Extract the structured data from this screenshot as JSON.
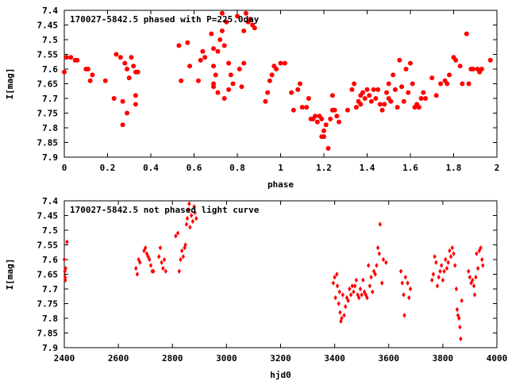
{
  "chart_data": [
    {
      "type": "scatter",
      "title": "170027-5842.5 phased with P=225.0day",
      "xlabel": "phase",
      "ylabel": "I[mag]",
      "xlim": [
        0,
        2
      ],
      "ylim": [
        7.9,
        7.4
      ],
      "y_inverted": true,
      "xticks": [
        0,
        0.2,
        0.4,
        0.6,
        0.8,
        1,
        1.2,
        1.4,
        1.6,
        1.8,
        2
      ],
      "yticks": [
        7.4,
        7.45,
        7.5,
        7.55,
        7.6,
        7.65,
        7.7,
        7.75,
        7.8,
        7.85,
        7.9
      ],
      "grid": false,
      "marker_color": "#ff0000",
      "marker": "filled-circle",
      "points": [
        [
          0.0,
          7.61
        ],
        [
          0.01,
          7.56
        ],
        [
          0.03,
          7.56
        ],
        [
          0.05,
          7.57
        ],
        [
          0.06,
          7.57
        ],
        [
          0.1,
          7.6
        ],
        [
          0.11,
          7.6
        ],
        [
          0.12,
          7.64
        ],
        [
          0.13,
          7.62
        ],
        [
          0.19,
          7.64
        ],
        [
          0.23,
          7.7
        ],
        [
          0.24,
          7.55
        ],
        [
          0.26,
          7.56
        ],
        [
          0.27,
          7.71
        ],
        [
          0.27,
          7.79
        ],
        [
          0.28,
          7.58
        ],
        [
          0.29,
          7.6
        ],
        [
          0.29,
          7.75
        ],
        [
          0.3,
          7.63
        ],
        [
          0.31,
          7.56
        ],
        [
          0.32,
          7.59
        ],
        [
          0.33,
          7.61
        ],
        [
          0.34,
          7.61
        ],
        [
          0.33,
          7.69
        ],
        [
          0.33,
          7.72
        ],
        [
          0.53,
          7.52
        ],
        [
          0.54,
          7.64
        ],
        [
          0.57,
          7.51
        ],
        [
          0.58,
          7.59
        ],
        [
          0.62,
          7.64
        ],
        [
          0.63,
          7.57
        ],
        [
          0.64,
          7.54
        ],
        [
          0.65,
          7.56
        ],
        [
          0.68,
          7.48
        ],
        [
          0.69,
          7.53
        ],
        [
          0.69,
          7.59
        ],
        [
          0.69,
          7.65
        ],
        [
          0.69,
          7.66
        ],
        [
          0.7,
          7.62
        ],
        [
          0.71,
          7.68
        ],
        [
          0.71,
          7.54
        ],
        [
          0.72,
          7.5
        ],
        [
          0.73,
          7.47
        ],
        [
          0.73,
          7.41
        ],
        [
          0.74,
          7.7
        ],
        [
          0.74,
          7.52
        ],
        [
          0.75,
          7.44
        ],
        [
          0.76,
          7.58
        ],
        [
          0.76,
          7.67
        ],
        [
          0.77,
          7.62
        ],
        [
          0.78,
          7.65
        ],
        [
          0.8,
          7.42
        ],
        [
          0.81,
          7.6
        ],
        [
          0.82,
          7.66
        ],
        [
          0.83,
          7.58
        ],
        [
          0.83,
          7.47
        ],
        [
          0.84,
          7.41
        ],
        [
          0.85,
          7.44
        ],
        [
          0.86,
          7.43
        ],
        [
          0.87,
          7.45
        ],
        [
          0.88,
          7.46
        ],
        [
          0.93,
          7.71
        ],
        [
          0.94,
          7.68
        ],
        [
          0.95,
          7.64
        ],
        [
          0.96,
          7.62
        ],
        [
          0.97,
          7.59
        ],
        [
          0.98,
          7.6
        ],
        [
          1.0,
          7.58
        ],
        [
          1.02,
          7.58
        ],
        [
          1.05,
          7.68
        ],
        [
          1.06,
          7.74
        ],
        [
          1.08,
          7.67
        ],
        [
          1.09,
          7.65
        ],
        [
          1.1,
          7.73
        ],
        [
          1.12,
          7.73
        ],
        [
          1.13,
          7.7
        ],
        [
          1.14,
          7.77
        ],
        [
          1.15,
          7.77
        ],
        [
          1.16,
          7.76
        ],
        [
          1.17,
          7.78
        ],
        [
          1.18,
          7.76
        ],
        [
          1.19,
          7.77
        ],
        [
          1.19,
          7.83
        ],
        [
          1.2,
          7.81
        ],
        [
          1.2,
          7.83
        ],
        [
          1.21,
          7.79
        ],
        [
          1.22,
          7.87
        ],
        [
          1.23,
          7.77
        ],
        [
          1.24,
          7.69
        ],
        [
          1.24,
          7.74
        ],
        [
          1.25,
          7.74
        ],
        [
          1.26,
          7.76
        ],
        [
          1.27,
          7.78
        ],
        [
          1.31,
          7.74
        ],
        [
          1.33,
          7.67
        ],
        [
          1.34,
          7.65
        ],
        [
          1.35,
          7.73
        ],
        [
          1.36,
          7.71
        ],
        [
          1.37,
          7.69
        ],
        [
          1.37,
          7.72
        ],
        [
          1.38,
          7.68
        ],
        [
          1.39,
          7.7
        ],
        [
          1.4,
          7.67
        ],
        [
          1.41,
          7.69
        ],
        [
          1.42,
          7.71
        ],
        [
          1.43,
          7.67
        ],
        [
          1.44,
          7.7
        ],
        [
          1.45,
          7.67
        ],
        [
          1.46,
          7.72
        ],
        [
          1.47,
          7.74
        ],
        [
          1.48,
          7.72
        ],
        [
          1.49,
          7.68
        ],
        [
          1.5,
          7.7
        ],
        [
          1.5,
          7.65
        ],
        [
          1.51,
          7.71
        ],
        [
          1.52,
          7.62
        ],
        [
          1.53,
          7.67
        ],
        [
          1.54,
          7.73
        ],
        [
          1.55,
          7.57
        ],
        [
          1.56,
          7.66
        ],
        [
          1.57,
          7.71
        ],
        [
          1.58,
          7.6
        ],
        [
          1.59,
          7.68
        ],
        [
          1.6,
          7.58
        ],
        [
          1.61,
          7.65
        ],
        [
          1.62,
          7.73
        ],
        [
          1.63,
          7.72
        ],
        [
          1.64,
          7.73
        ],
        [
          1.65,
          7.7
        ],
        [
          1.66,
          7.68
        ],
        [
          1.67,
          7.7
        ],
        [
          1.7,
          7.63
        ],
        [
          1.72,
          7.69
        ],
        [
          1.74,
          7.65
        ],
        [
          1.76,
          7.64
        ],
        [
          1.77,
          7.65
        ],
        [
          1.78,
          7.62
        ],
        [
          1.8,
          7.56
        ],
        [
          1.81,
          7.57
        ],
        [
          1.83,
          7.59
        ],
        [
          1.84,
          7.65
        ],
        [
          1.86,
          7.48
        ],
        [
          1.87,
          7.65
        ],
        [
          1.88,
          7.6
        ],
        [
          1.89,
          7.6
        ],
        [
          1.91,
          7.6
        ],
        [
          1.92,
          7.61
        ],
        [
          1.93,
          7.6
        ],
        [
          1.97,
          7.57
        ]
      ]
    },
    {
      "type": "scatter",
      "title": "170027-5842.5 not phased light curve",
      "xlabel": "hjd0",
      "ylabel": "I[mag]",
      "xlim": [
        2400,
        4000
      ],
      "ylim": [
        7.9,
        7.4
      ],
      "y_inverted": true,
      "xticks": [
        2400,
        2600,
        2800,
        3000,
        3200,
        3400,
        3600,
        3800,
        4000
      ],
      "yticks": [
        7.4,
        7.45,
        7.5,
        7.55,
        7.6,
        7.65,
        7.7,
        7.75,
        7.8,
        7.85,
        7.9
      ],
      "grid": false,
      "marker_color": "#ff0000",
      "marker": "diamond",
      "points": [
        [
          2400,
          7.6
        ],
        [
          2402,
          7.64
        ],
        [
          2403,
          7.66
        ],
        [
          2404,
          7.67
        ],
        [
          2405,
          7.63
        ],
        [
          2410,
          7.54
        ],
        [
          2665,
          7.63
        ],
        [
          2670,
          7.65
        ],
        [
          2675,
          7.6
        ],
        [
          2680,
          7.61
        ],
        [
          2695,
          7.57
        ],
        [
          2700,
          7.56
        ],
        [
          2705,
          7.58
        ],
        [
          2710,
          7.59
        ],
        [
          2715,
          7.6
        ],
        [
          2720,
          7.62
        ],
        [
          2725,
          7.64
        ],
        [
          2730,
          7.64
        ],
        [
          2750,
          7.59
        ],
        [
          2755,
          7.56
        ],
        [
          2760,
          7.61
        ],
        [
          2765,
          7.63
        ],
        [
          2770,
          7.6
        ],
        [
          2775,
          7.64
        ],
        [
          2812,
          7.52
        ],
        [
          2820,
          7.51
        ],
        [
          2825,
          7.64
        ],
        [
          2830,
          7.6
        ],
        [
          2835,
          7.57
        ],
        [
          2840,
          7.59
        ],
        [
          2845,
          7.56
        ],
        [
          2848,
          7.55
        ],
        [
          2852,
          7.48
        ],
        [
          2855,
          7.46
        ],
        [
          2860,
          7.43
        ],
        [
          2862,
          7.41
        ],
        [
          2865,
          7.49
        ],
        [
          2870,
          7.45
        ],
        [
          2875,
          7.47
        ],
        [
          2880,
          7.42
        ],
        [
          2883,
          7.44
        ],
        [
          2888,
          7.46
        ],
        [
          3395,
          7.68
        ],
        [
          3400,
          7.66
        ],
        [
          3403,
          7.73
        ],
        [
          3408,
          7.65
        ],
        [
          3410,
          7.69
        ],
        [
          3415,
          7.75
        ],
        [
          3418,
          7.71
        ],
        [
          3420,
          7.78
        ],
        [
          3423,
          7.81
        ],
        [
          3426,
          7.8
        ],
        [
          3430,
          7.72
        ],
        [
          3435,
          7.79
        ],
        [
          3440,
          7.76
        ],
        [
          3445,
          7.73
        ],
        [
          3450,
          7.74
        ],
        [
          3455,
          7.7
        ],
        [
          3460,
          7.72
        ],
        [
          3465,
          7.69
        ],
        [
          3470,
          7.71
        ],
        [
          3475,
          7.69
        ],
        [
          3480,
          7.67
        ],
        [
          3485,
          7.72
        ],
        [
          3490,
          7.73
        ],
        [
          3495,
          7.7
        ],
        [
          3500,
          7.72
        ],
        [
          3505,
          7.67
        ],
        [
          3510,
          7.71
        ],
        [
          3515,
          7.72
        ],
        [
          3520,
          7.73
        ],
        [
          3525,
          7.62
        ],
        [
          3530,
          7.69
        ],
        [
          3535,
          7.66
        ],
        [
          3540,
          7.71
        ],
        [
          3545,
          7.64
        ],
        [
          3550,
          7.65
        ],
        [
          3555,
          7.62
        ],
        [
          3560,
          7.56
        ],
        [
          3565,
          7.58
        ],
        [
          3568,
          7.48
        ],
        [
          3575,
          7.68
        ],
        [
          3580,
          7.6
        ],
        [
          3590,
          7.61
        ],
        [
          3645,
          7.64
        ],
        [
          3650,
          7.68
        ],
        [
          3655,
          7.72
        ],
        [
          3658,
          7.79
        ],
        [
          3662,
          7.66
        ],
        [
          3670,
          7.68
        ],
        [
          3675,
          7.73
        ],
        [
          3680,
          7.7
        ],
        [
          3760,
          7.67
        ],
        [
          3765,
          7.65
        ],
        [
          3770,
          7.59
        ],
        [
          3775,
          7.61
        ],
        [
          3780,
          7.69
        ],
        [
          3785,
          7.66
        ],
        [
          3790,
          7.64
        ],
        [
          3795,
          7.62
        ],
        [
          3800,
          7.67
        ],
        [
          3805,
          7.64
        ],
        [
          3810,
          7.6
        ],
        [
          3815,
          7.63
        ],
        [
          3820,
          7.61
        ],
        [
          3825,
          7.57
        ],
        [
          3830,
          7.59
        ],
        [
          3835,
          7.56
        ],
        [
          3840,
          7.58
        ],
        [
          3845,
          7.62
        ],
        [
          3850,
          7.7
        ],
        [
          3853,
          7.77
        ],
        [
          3856,
          7.79
        ],
        [
          3860,
          7.8
        ],
        [
          3863,
          7.83
        ],
        [
          3866,
          7.87
        ],
        [
          3870,
          7.74
        ],
        [
          3895,
          7.64
        ],
        [
          3900,
          7.66
        ],
        [
          3905,
          7.68
        ],
        [
          3910,
          7.67
        ],
        [
          3915,
          7.69
        ],
        [
          3918,
          7.72
        ],
        [
          3922,
          7.66
        ],
        [
          3925,
          7.58
        ],
        [
          3930,
          7.63
        ],
        [
          3935,
          7.57
        ],
        [
          3940,
          7.56
        ],
        [
          3945,
          7.6
        ],
        [
          3948,
          7.62
        ]
      ]
    }
  ]
}
